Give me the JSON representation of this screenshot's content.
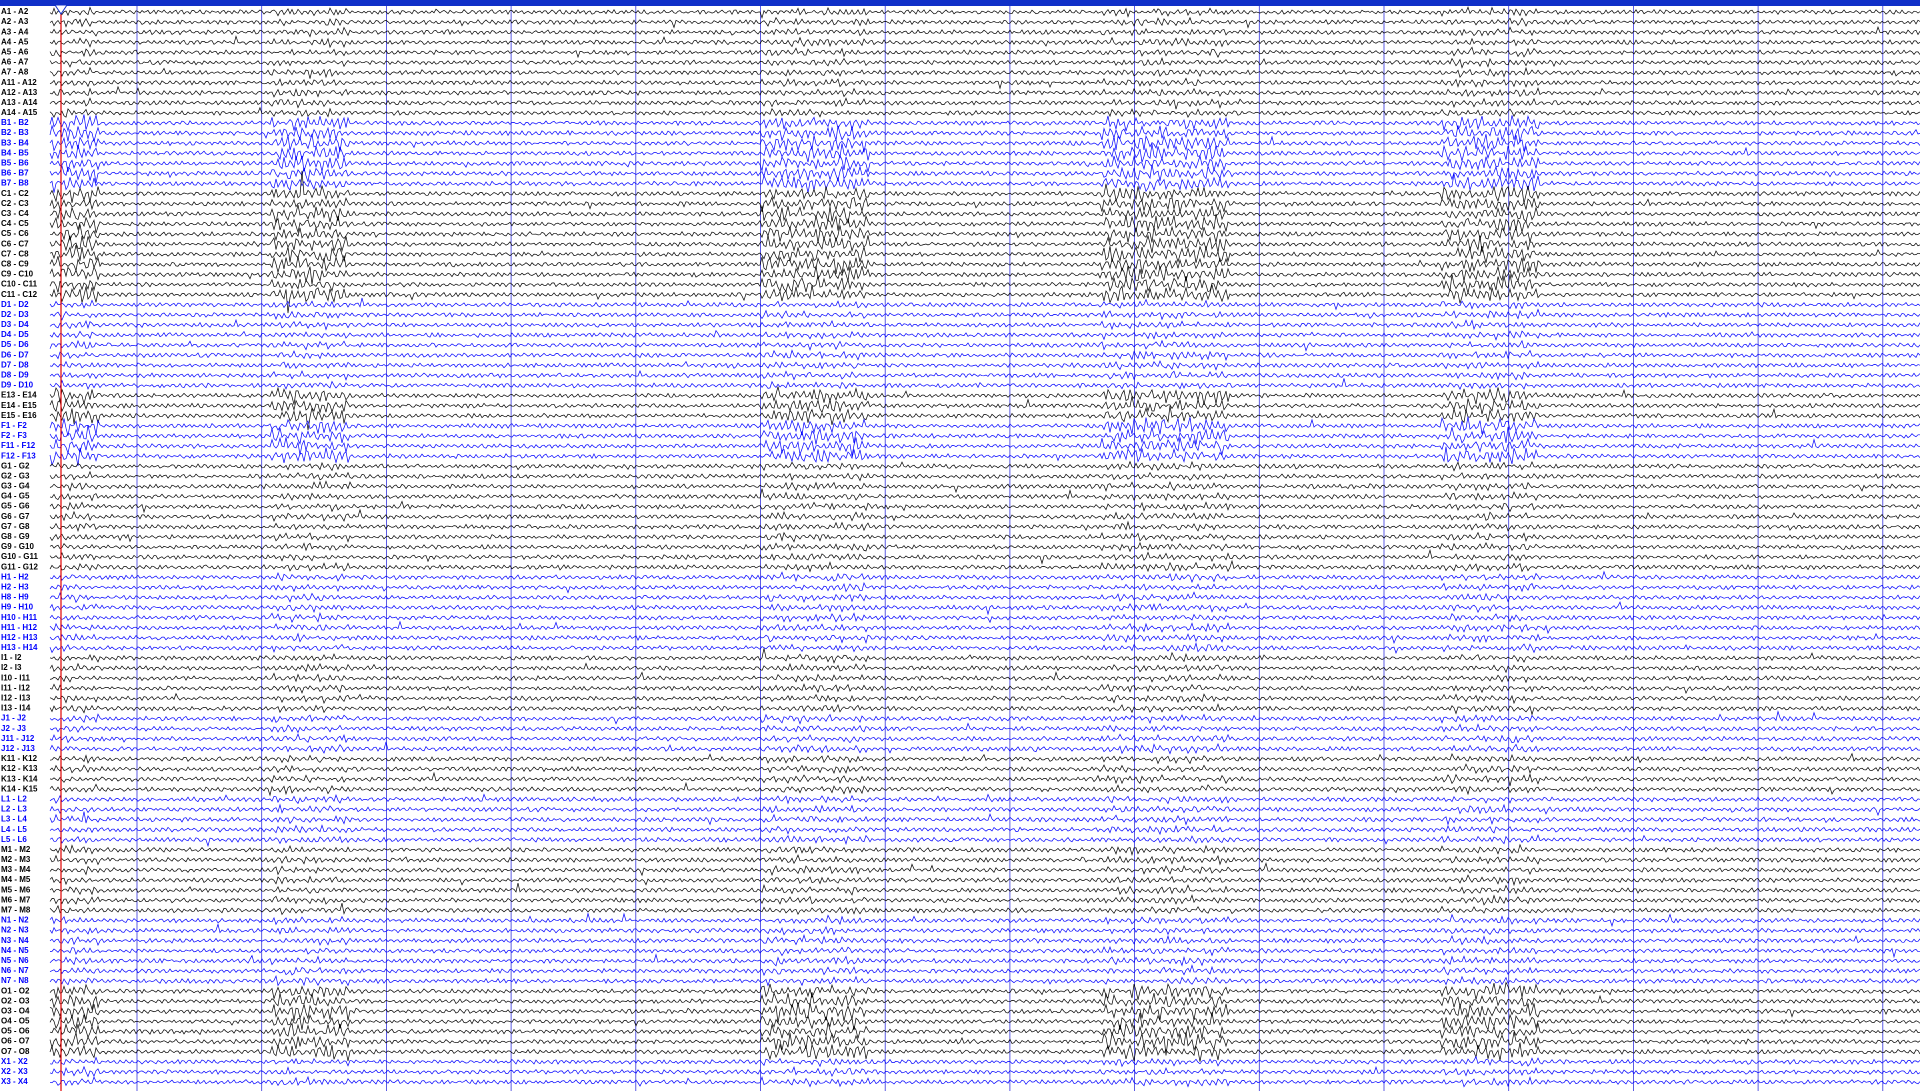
{
  "groups": [
    {
      "color": "#000000",
      "channels": [
        "A1 - A2",
        "A2 - A3",
        "A3 - A4",
        "A4 - A5",
        "A5 - A6",
        "A6 - A7",
        "A7 - A8",
        "A11 - A12",
        "A12 - A13",
        "A13 - A14",
        "A14 - A15"
      ]
    },
    {
      "color": "#0000ff",
      "channels": [
        "B1 - B2",
        "B2 - B3",
        "B3 - B4",
        "B4 - B5",
        "B5 - B6",
        "B6 - B7",
        "B7 - B8"
      ]
    },
    {
      "color": "#000000",
      "channels": [
        "C1 - C2",
        "C2 - C3",
        "C3 - C4",
        "C4 - C5",
        "C5 - C6",
        "C6 - C7",
        "C7 - C8",
        "C8 - C9",
        "C9 - C10",
        "C10 - C11",
        "C11 - C12"
      ]
    },
    {
      "color": "#0000ff",
      "channels": [
        "D1 - D2",
        "D2 - D3",
        "D3 - D4",
        "D4 - D5",
        "D5 - D6",
        "D6 - D7",
        "D7 - D8",
        "D8 - D9",
        "D9 - D10"
      ]
    },
    {
      "color": "#000000",
      "channels": [
        "E13 - E14",
        "E14 - E15",
        "E15 - E16"
      ]
    },
    {
      "color": "#0000ff",
      "channels": [
        "F1 - F2",
        "F2 - F3",
        "F11 - F12",
        "F12 - F13"
      ]
    },
    {
      "color": "#000000",
      "channels": [
        "G1 - G2",
        "G2 - G3",
        "G3 - G4",
        "G4 - G5",
        "G5 - G6",
        "G6 - G7",
        "G7 - G8",
        "G8 - G9",
        "G9 - G10",
        "G10 - G11",
        "G11 - G12"
      ]
    },
    {
      "color": "#0000ff",
      "channels": [
        "H1 - H2",
        "H2 - H3",
        "H8 - H9",
        "H9 - H10",
        "H10 - H11",
        "H11 - H12",
        "H12 - H13",
        "H13 - H14"
      ]
    },
    {
      "color": "#000000",
      "channels": [
        "I1 - I2",
        "I2 - I3",
        "I10 - I11",
        "I11 - I12",
        "I12 - I13",
        "I13 - I14"
      ]
    },
    {
      "color": "#0000ff",
      "channels": [
        "J1 - J2",
        "J2 - J3",
        "J11 - J12",
        "J12 - J13"
      ]
    },
    {
      "color": "#000000",
      "channels": [
        "K11 - K12",
        "K12 - K13",
        "K13 - K14",
        "K14 - K15"
      ]
    },
    {
      "color": "#0000ff",
      "channels": [
        "L1 - L2",
        "L2 - L3",
        "L3 - L4",
        "L4 - L5",
        "L5 - L6"
      ]
    },
    {
      "color": "#000000",
      "channels": [
        "M1 - M2",
        "M2 - M3",
        "M3 - M4",
        "M4 - M5",
        "M5 - M6",
        "M6 - M7",
        "M7 - M8"
      ]
    },
    {
      "color": "#0000ff",
      "channels": [
        "N1 - N2",
        "N2 - N3",
        "N3 - N4",
        "N4 - N5",
        "N5 - N6",
        "N6 - N7",
        "N7 - N8"
      ]
    },
    {
      "color": "#000000",
      "channels": [
        "O1 - O2",
        "O2 - O3",
        "O3 - O4",
        "O4 - O5",
        "O5 - O6",
        "O6 - O7",
        "O7 - O8"
      ]
    },
    {
      "color": "#0000ff",
      "channels": [
        "X1 - X2",
        "X2 - X3",
        "X3 - X4"
      ]
    }
  ]
}
